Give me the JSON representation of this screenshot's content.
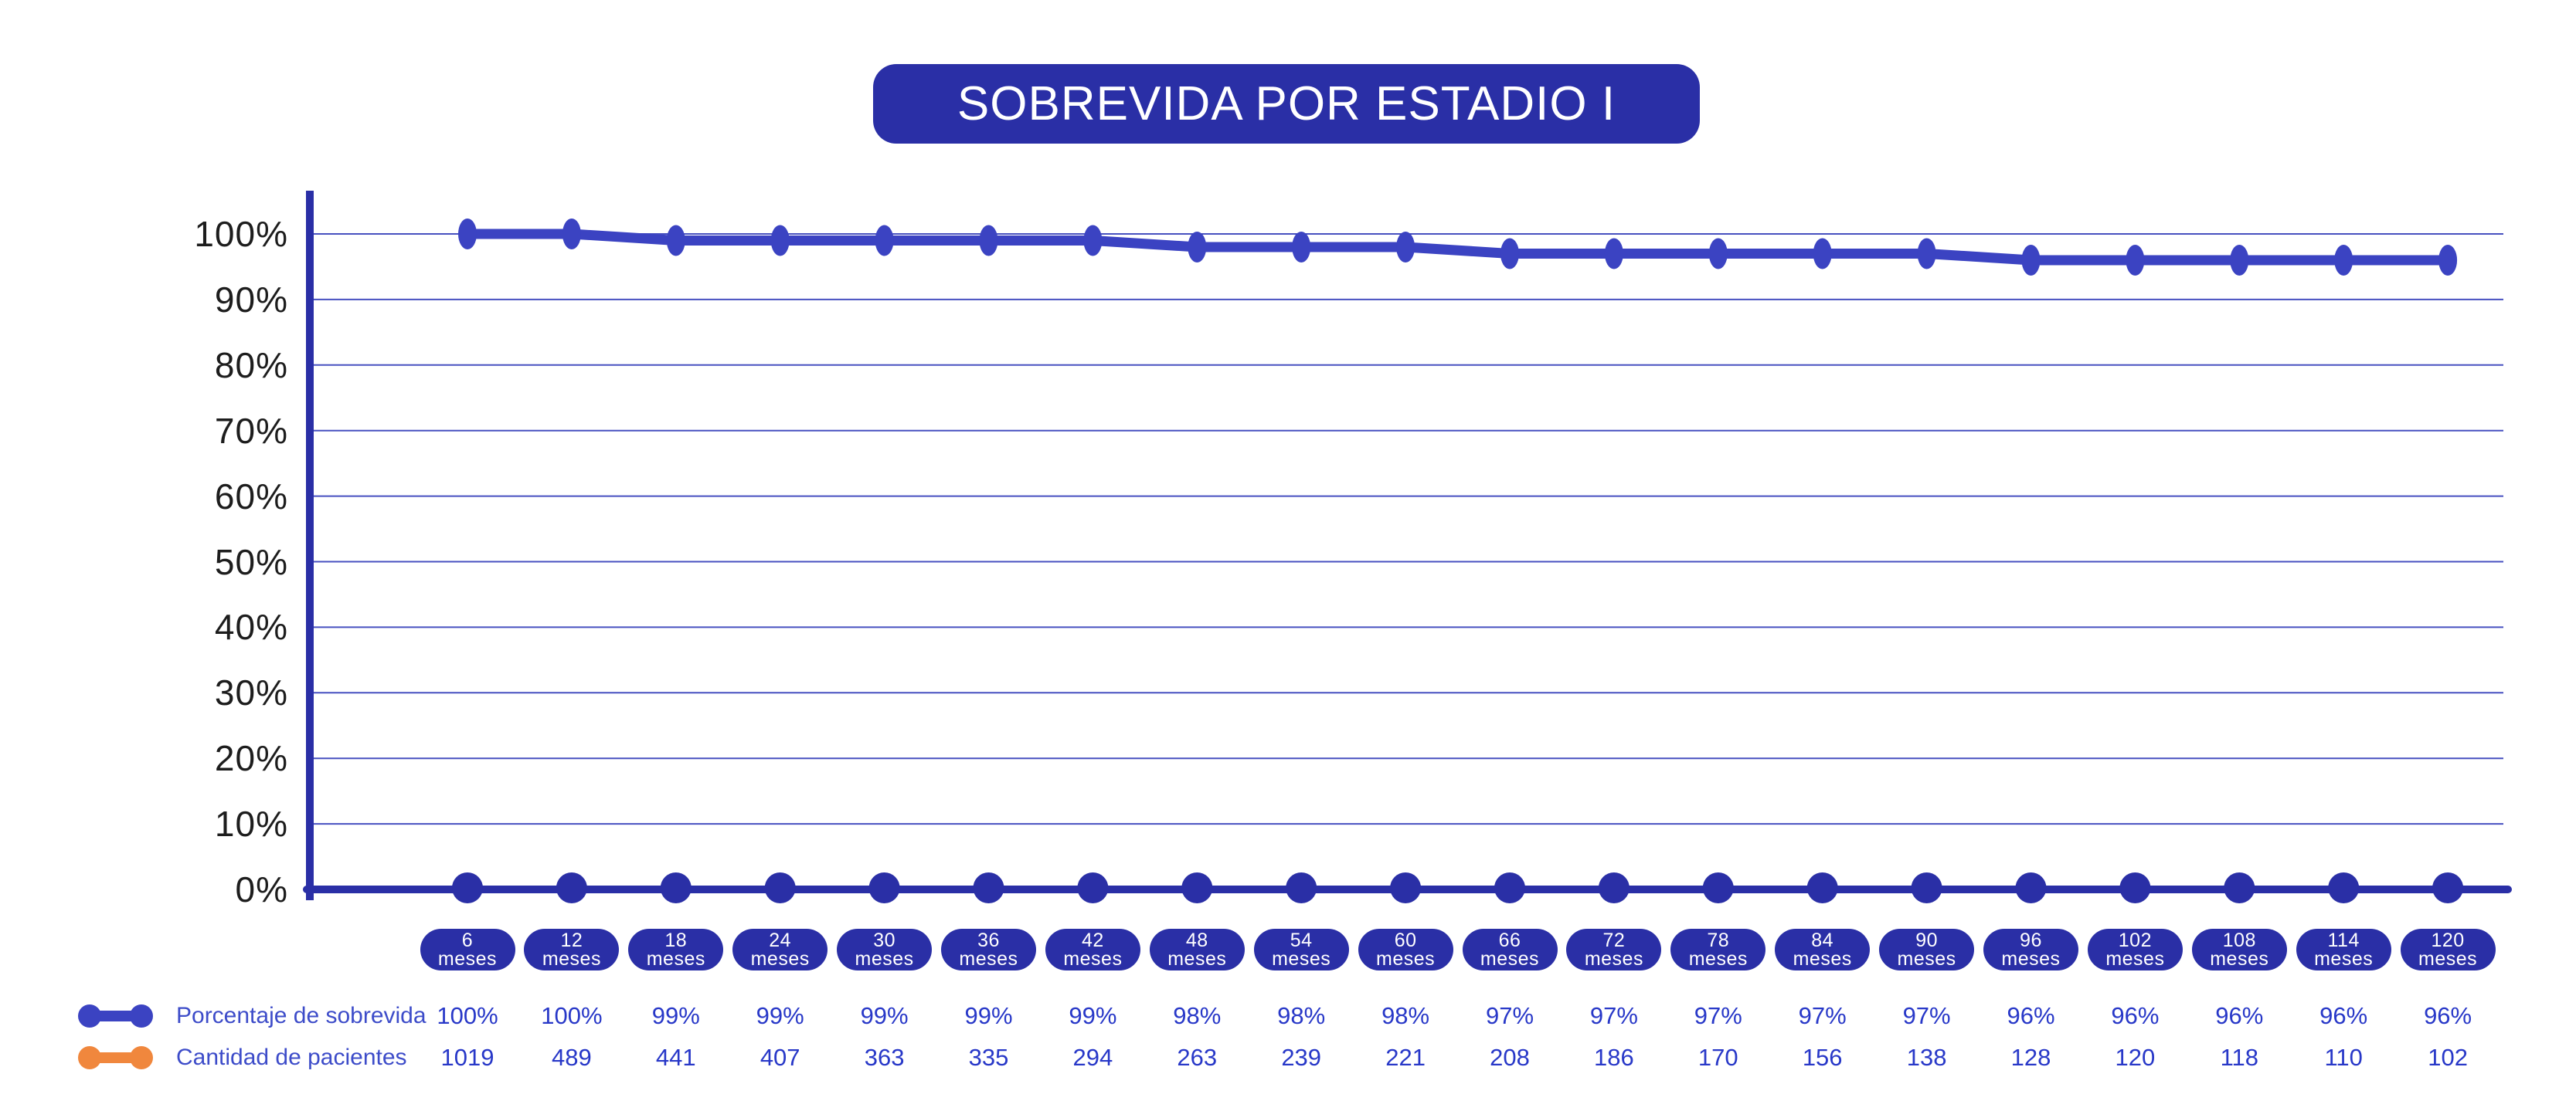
{
  "title": "SOBREVIDA POR ESTADIO I",
  "x_unit": "meses",
  "colors": {
    "dark_blue": "#2A2FA6",
    "line_blue": "#3B43C2",
    "grid_blue": "#4750C0",
    "legend_text_blue": "#3D4CC9",
    "value_text_blue": "#2838C8",
    "orange": "#F0873D",
    "axis_label_color": "#1D1D1D",
    "title_text": "#FFFFFF"
  },
  "legend": [
    {
      "label": "Porcentaje de sobrevida",
      "swatch_color": "#3B43C2"
    },
    {
      "label": "Cantidad de pacientes",
      "swatch_color": "#F0873D"
    }
  ],
  "chart_data": {
    "type": "line",
    "title": "SOBREVIDA POR ESTADIO I",
    "x": [
      6,
      12,
      18,
      24,
      30,
      36,
      42,
      48,
      54,
      60,
      66,
      72,
      78,
      84,
      90,
      96,
      102,
      108,
      114,
      120
    ],
    "categories": [
      "6",
      "12",
      "18",
      "24",
      "30",
      "36",
      "42",
      "48",
      "54",
      "60",
      "66",
      "72",
      "78",
      "84",
      "90",
      "96",
      "102",
      "108",
      "114",
      "120"
    ],
    "x_tick_labels": [
      "6 meses",
      "12 meses",
      "18 meses",
      "24 meses",
      "30 meses",
      "36 meses",
      "42 meses",
      "48 meses",
      "54 meses",
      "60 meses",
      "66 meses",
      "72 meses",
      "78 meses",
      "84 meses",
      "90 meses",
      "96 meses",
      "102 meses",
      "108 meses",
      "114 meses",
      "120 meses"
    ],
    "series": [
      {
        "name": "Porcentaje de sobrevida",
        "values": [
          100,
          100,
          99,
          99,
          99,
          99,
          99,
          98,
          98,
          98,
          97,
          97,
          97,
          97,
          97,
          96,
          96,
          96,
          96,
          96
        ],
        "labels": [
          "100%",
          "100%",
          "99%",
          "99%",
          "99%",
          "99%",
          "99%",
          "98%",
          "98%",
          "98%",
          "97%",
          "97%",
          "97%",
          "97%",
          "97%",
          "96%",
          "96%",
          "96%",
          "96%",
          "96%"
        ],
        "color": "#3B43C2"
      },
      {
        "name": "Cantidad de pacientes",
        "values": [
          1019,
          489,
          441,
          407,
          363,
          335,
          294,
          263,
          239,
          221,
          208,
          186,
          170,
          156,
          138,
          128,
          120,
          118,
          110,
          102
        ],
        "labels": [
          "1019",
          "489",
          "441",
          "407",
          "363",
          "335",
          "294",
          "263",
          "239",
          "221",
          "208",
          "186",
          "170",
          "156",
          "138",
          "128",
          "120",
          "118",
          "110",
          "102"
        ],
        "color": "#F0873D",
        "plotted_on_baseline": true
      }
    ],
    "ylim": [
      0,
      100
    ],
    "yticks": [
      "100%",
      "90%",
      "80%",
      "70%",
      "60%",
      "50%",
      "40%",
      "30%",
      "20%",
      "10%",
      "0%"
    ],
    "ytick_values": [
      100,
      90,
      80,
      70,
      60,
      50,
      40,
      30,
      20,
      10,
      0
    ],
    "grid": true,
    "legend_position": "bottom-left"
  }
}
